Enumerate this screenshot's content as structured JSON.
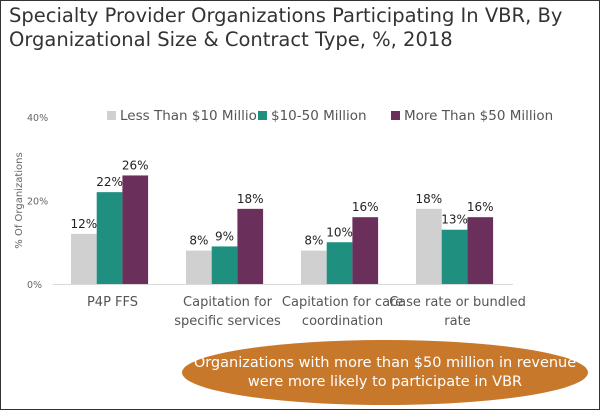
{
  "title": "Specialty Provider Organizations Participating In VBR, By Organizational Size & Contract Type, %, 2018",
  "callout": "Organizations with more than $50 million in revenue were more likely to participate in VBR",
  "chart_data": {
    "type": "bar",
    "title": "Specialty Provider Organizations Participating In VBR, By Organizational Size & Contract Type, %, 2018",
    "xlabel": "",
    "ylabel": "% Of Organizations",
    "ylim": [
      0,
      40
    ],
    "yticks": [
      "0%",
      "20%",
      "40%"
    ],
    "ytick_values": [
      0,
      20,
      40
    ],
    "grid": false,
    "legend": "top",
    "categories": [
      [
        "P4P FFS"
      ],
      [
        "Capitation for",
        "specific services"
      ],
      [
        "Capitation for care",
        "coordination"
      ],
      [
        "Case rate or bundled",
        "rate"
      ]
    ],
    "series": [
      {
        "name": "Less Than $10 Million",
        "color": "#d0d0d0",
        "values": [
          12,
          8,
          8,
          18
        ],
        "labels": [
          "12%",
          "8%",
          "8%",
          "18%"
        ]
      },
      {
        "name": "$10-50 Million",
        "color": "#1f9080",
        "values": [
          22,
          9,
          10,
          13
        ],
        "labels": [
          "22%",
          "9%",
          "10%",
          "13%"
        ]
      },
      {
        "name": "More Than $50 Million",
        "color": "#6b2f5c",
        "values": [
          26,
          18,
          16,
          16
        ],
        "labels": [
          "26%",
          "18%",
          "16%",
          "16%"
        ]
      }
    ]
  }
}
